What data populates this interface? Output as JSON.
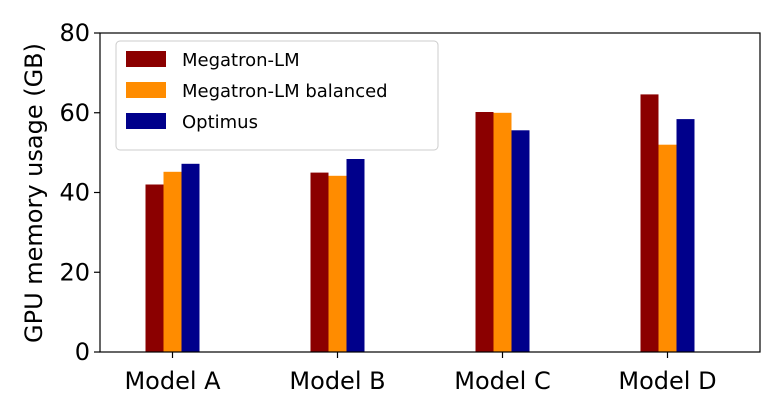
{
  "chart_data": {
    "type": "bar",
    "title": "",
    "xlabel": "",
    "ylabel": "GPU memory usage (GB)",
    "ylim": [
      0,
      80
    ],
    "yticks": [
      0,
      20,
      40,
      60,
      80
    ],
    "grid": false,
    "legend_position": "top-left",
    "categories": [
      "Model A",
      "Model B",
      "Model C",
      "Model D"
    ],
    "series": [
      {
        "name": "Megatron-LM",
        "color": "#8b0000",
        "values": [
          42.0,
          45.0,
          60.2,
          64.6
        ]
      },
      {
        "name": "Megatron-LM balanced",
        "color": "#ff8c00",
        "values": [
          45.2,
          44.2,
          60.0,
          52.0
        ]
      },
      {
        "name": "Optimus",
        "color": "#00008b",
        "values": [
          47.2,
          48.4,
          55.6,
          58.4
        ]
      }
    ]
  }
}
